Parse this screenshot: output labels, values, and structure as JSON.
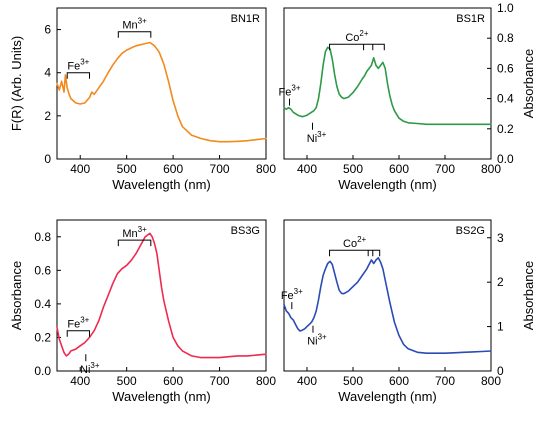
{
  "colors": {
    "BN1R": "#f28a1e",
    "BS1R": "#2e9a48",
    "BS3G": "#ee2a4f",
    "BS2G": "#2b4bb5"
  },
  "chart_data": [
    {
      "type": "line",
      "panel": "BN1R",
      "xlabel": "Wavelength (nm)",
      "ylabel": "F(R) (Arb. Units)",
      "y_axis_side": "left",
      "xlim": [
        350,
        800
      ],
      "ylim": [
        0,
        7
      ],
      "xticks": [
        400,
        500,
        600,
        700,
        800
      ],
      "yticks": [
        0,
        2,
        4,
        6
      ],
      "series": [
        {
          "color_key": "BN1R",
          "x": [
            350,
            355,
            360,
            365,
            368,
            372,
            376,
            380,
            390,
            400,
            410,
            420,
            425,
            430,
            440,
            450,
            460,
            470,
            480,
            490,
            500,
            510,
            520,
            530,
            540,
            550,
            560,
            570,
            580,
            590,
            600,
            610,
            620,
            640,
            660,
            680,
            700,
            720,
            740,
            760,
            780,
            800
          ],
          "y": [
            3.5,
            3.2,
            3.6,
            3.1,
            3.9,
            3.3,
            3.0,
            2.8,
            2.6,
            2.55,
            2.6,
            2.85,
            3.1,
            3.0,
            3.3,
            3.6,
            4.0,
            4.35,
            4.65,
            4.9,
            5.05,
            5.15,
            5.25,
            5.3,
            5.35,
            5.4,
            5.25,
            4.95,
            4.4,
            3.6,
            2.7,
            2.0,
            1.5,
            1.1,
            0.95,
            0.85,
            0.8,
            0.8,
            0.82,
            0.85,
            0.9,
            0.95
          ]
        }
      ],
      "annotations": [
        {
          "text": "Fe",
          "sup": "3+",
          "bracket_x": [
            372,
            420
          ],
          "y": 4.0
        },
        {
          "text": "Mn",
          "sup": "3+",
          "bracket_x": [
            482,
            552
          ],
          "y": 5.9
        }
      ]
    },
    {
      "type": "line",
      "panel": "BS1R",
      "xlabel": "Wavelength (nm)",
      "ylabel": "Absorbance",
      "y_axis_side": "right",
      "xlim": [
        350,
        800
      ],
      "ylim": [
        0,
        1.0
      ],
      "xticks": [
        400,
        500,
        600,
        700,
        800
      ],
      "yticks": [
        0,
        0.2,
        0.4,
        0.6,
        0.8,
        1.0
      ],
      "ytick_labels": [
        "0.0",
        "0.2",
        "0.4",
        "0.6",
        "0.8",
        "1.0"
      ],
      "series": [
        {
          "color_key": "BS1R",
          "x": [
            350,
            355,
            360,
            365,
            370,
            375,
            380,
            385,
            390,
            395,
            400,
            405,
            410,
            415,
            420,
            425,
            430,
            435,
            440,
            445,
            450,
            455,
            460,
            465,
            470,
            475,
            480,
            490,
            500,
            510,
            520,
            525,
            530,
            535,
            540,
            545,
            550,
            555,
            560,
            565,
            570,
            575,
            580,
            585,
            590,
            600,
            610,
            620,
            640,
            660,
            680,
            700,
            720,
            740,
            760,
            780,
            800
          ],
          "y": [
            0.34,
            0.33,
            0.34,
            0.33,
            0.31,
            0.3,
            0.29,
            0.285,
            0.28,
            0.285,
            0.29,
            0.3,
            0.31,
            0.32,
            0.34,
            0.4,
            0.5,
            0.62,
            0.71,
            0.74,
            0.73,
            0.66,
            0.56,
            0.48,
            0.43,
            0.41,
            0.4,
            0.41,
            0.44,
            0.48,
            0.53,
            0.55,
            0.58,
            0.6,
            0.62,
            0.67,
            0.62,
            0.6,
            0.62,
            0.64,
            0.6,
            0.5,
            0.42,
            0.36,
            0.32,
            0.27,
            0.25,
            0.24,
            0.235,
            0.23,
            0.23,
            0.23,
            0.23,
            0.23,
            0.23,
            0.23,
            0.23
          ]
        }
      ],
      "annotations": [
        {
          "text": "Co",
          "sup": "2+",
          "bracket_x": [
            449,
            568
          ],
          "inner_ticks": [
            523,
            543
          ],
          "y": 0.76
        },
        {
          "text": "Fe",
          "sup": "3+",
          "marker_x": 362,
          "y": 0.4
        },
        {
          "text": "Ni",
          "sup": "3+",
          "marker_x": 412,
          "y": 0.24
        }
      ]
    },
    {
      "type": "line",
      "panel": "BS3G",
      "xlabel": "Wavelength (nm)",
      "ylabel": "Absorbance",
      "y_axis_side": "left",
      "xlim": [
        350,
        800
      ],
      "ylim": [
        0,
        0.9
      ],
      "xticks": [
        400,
        500,
        600,
        700,
        800
      ],
      "yticks": [
        0,
        0.2,
        0.4,
        0.6,
        0.8
      ],
      "ytick_labels": [
        "0.0",
        "0.2",
        "0.4",
        "0.6",
        "0.8"
      ],
      "series": [
        {
          "color_key": "BS3G",
          "x": [
            350,
            355,
            360,
            365,
            370,
            375,
            380,
            390,
            400,
            410,
            420,
            425,
            430,
            440,
            450,
            460,
            470,
            480,
            490,
            500,
            510,
            520,
            530,
            540,
            550,
            555,
            560,
            565,
            570,
            575,
            580,
            590,
            600,
            610,
            620,
            640,
            660,
            680,
            700,
            720,
            740,
            760,
            780,
            800
          ],
          "y": [
            0.26,
            0.19,
            0.15,
            0.11,
            0.09,
            0.1,
            0.12,
            0.13,
            0.15,
            0.17,
            0.2,
            0.22,
            0.24,
            0.3,
            0.38,
            0.45,
            0.52,
            0.58,
            0.61,
            0.63,
            0.66,
            0.7,
            0.75,
            0.8,
            0.82,
            0.8,
            0.76,
            0.7,
            0.6,
            0.5,
            0.42,
            0.3,
            0.2,
            0.15,
            0.12,
            0.09,
            0.08,
            0.08,
            0.08,
            0.085,
            0.09,
            0.09,
            0.095,
            0.1
          ]
        }
      ],
      "annotations": [
        {
          "text": "Fe",
          "sup": "3+",
          "bracket_x": [
            372,
            420
          ],
          "y": 0.24
        },
        {
          "text": "Ni",
          "sup": "3+",
          "marker_x": 412,
          "y": 0.1
        },
        {
          "text": "Mn",
          "sup": "3+",
          "bracket_x": [
            482,
            552
          ],
          "y": 0.78
        }
      ]
    },
    {
      "type": "line",
      "panel": "BS2G",
      "xlabel": "Wavelength (nm)",
      "ylabel": "Absorbance",
      "y_axis_side": "right",
      "xlim": [
        350,
        800
      ],
      "ylim": [
        0,
        3.4
      ],
      "xticks": [
        400,
        500,
        600,
        700,
        800
      ],
      "yticks": [
        0,
        1,
        2,
        3
      ],
      "series": [
        {
          "color_key": "BS2G",
          "x": [
            350,
            355,
            360,
            365,
            370,
            375,
            380,
            385,
            390,
            395,
            400,
            405,
            410,
            415,
            420,
            425,
            430,
            435,
            440,
            445,
            450,
            455,
            460,
            465,
            470,
            475,
            480,
            490,
            500,
            510,
            520,
            530,
            535,
            540,
            545,
            550,
            555,
            560,
            565,
            570,
            575,
            580,
            590,
            600,
            610,
            620,
            640,
            660,
            680,
            700,
            720,
            740,
            760,
            780,
            800
          ],
          "y": [
            1.5,
            1.35,
            1.3,
            1.2,
            1.15,
            1.05,
            0.95,
            0.9,
            0.92,
            0.95,
            1.0,
            1.05,
            1.1,
            1.2,
            1.35,
            1.6,
            1.9,
            2.15,
            2.3,
            2.42,
            2.47,
            2.4,
            2.2,
            2.0,
            1.82,
            1.75,
            1.74,
            1.8,
            1.9,
            2.0,
            2.15,
            2.3,
            2.4,
            2.5,
            2.42,
            2.5,
            2.55,
            2.45,
            2.3,
            2.05,
            1.8,
            1.55,
            1.1,
            0.8,
            0.6,
            0.5,
            0.42,
            0.4,
            0.4,
            0.4,
            0.41,
            0.42,
            0.43,
            0.44,
            0.45
          ]
        }
      ],
      "annotations": [
        {
          "text": "Co",
          "sup": "2+",
          "bracket_x": [
            449,
            558
          ],
          "inner_ticks": [
            533,
            543
          ],
          "y": 2.72
        },
        {
          "text": "Fe",
          "sup": "3+",
          "marker_x": 367,
          "y": 1.55
        },
        {
          "text": "Ni",
          "sup": "3+",
          "marker_x": 413,
          "y": 1.02
        }
      ]
    }
  ]
}
